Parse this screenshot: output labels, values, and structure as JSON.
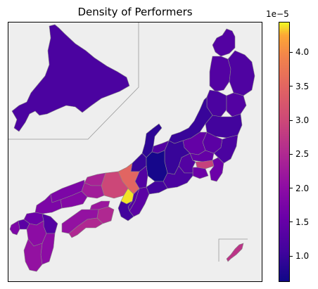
{
  "title": "Density of Performers",
  "colorbar": {
    "colormap": "plasma",
    "multiplier_label": "1e−5",
    "range": [
      0.62,
      4.45
    ],
    "ticks": [
      {
        "value": 1.0,
        "label": "1.0"
      },
      {
        "value": 1.5,
        "label": "1.5"
      },
      {
        "value": 2.0,
        "label": "2.0"
      },
      {
        "value": 2.5,
        "label": "2.5"
      },
      {
        "value": 3.0,
        "label": "3.0"
      },
      {
        "value": 3.5,
        "label": "3.5"
      },
      {
        "value": 4.0,
        "label": "4.0"
      }
    ]
  },
  "background_color": "#eeeeee",
  "border_color": "#888888",
  "regions": [
    {
      "name": "hokkaido",
      "value": 1.2
    },
    {
      "name": "aomori",
      "value": 1.3
    },
    {
      "name": "iwate",
      "value": 1.25
    },
    {
      "name": "akita",
      "value": 1.3
    },
    {
      "name": "miyagi",
      "value": 1.3
    },
    {
      "name": "yamagata",
      "value": 1.2
    },
    {
      "name": "fukushima",
      "value": 1.1
    },
    {
      "name": "niigata",
      "value": 1.0
    },
    {
      "name": "tochigi",
      "value": 1.4
    },
    {
      "name": "ibaraki",
      "value": 1.2
    },
    {
      "name": "gunma",
      "value": 1.5
    },
    {
      "name": "saitama",
      "value": 1.5
    },
    {
      "name": "chiba",
      "value": 1.6
    },
    {
      "name": "tokyo",
      "value": 2.9
    },
    {
      "name": "kanagawa",
      "value": 1.6
    },
    {
      "name": "yamanashi",
      "value": 1.3
    },
    {
      "name": "nagano",
      "value": 1.0
    },
    {
      "name": "shizuoka",
      "value": 1.2
    },
    {
      "name": "toyama",
      "value": 1.3
    },
    {
      "name": "ishikawa",
      "value": 0.9
    },
    {
      "name": "fukui",
      "value": 1.0
    },
    {
      "name": "gifu",
      "value": 0.7
    },
    {
      "name": "aichi",
      "value": 1.1
    },
    {
      "name": "mie",
      "value": 1.4
    },
    {
      "name": "shiga",
      "value": 1.3
    },
    {
      "name": "kyoto",
      "value": 3.5
    },
    {
      "name": "osaka",
      "value": 4.4
    },
    {
      "name": "hyogo",
      "value": 3.0
    },
    {
      "name": "nara",
      "value": 1.3
    },
    {
      "name": "wakayama",
      "value": 1.1
    },
    {
      "name": "tottori",
      "value": 2.4
    },
    {
      "name": "shimane",
      "value": 1.8
    },
    {
      "name": "okayama",
      "value": 2.3
    },
    {
      "name": "hiroshima",
      "value": 1.9
    },
    {
      "name": "yamaguchi",
      "value": 1.8
    },
    {
      "name": "kagawa",
      "value": 2.2
    },
    {
      "name": "tokushima",
      "value": 2.5
    },
    {
      "name": "ehime",
      "value": 2.1
    },
    {
      "name": "kochi",
      "value": 2.5
    },
    {
      "name": "fukuoka",
      "value": 1.6
    },
    {
      "name": "saga",
      "value": 1.4
    },
    {
      "name": "nagasaki",
      "value": 1.8
    },
    {
      "name": "kumamoto",
      "value": 2.0
    },
    {
      "name": "oita",
      "value": 1.3
    },
    {
      "name": "miyazaki",
      "value": 2.0
    },
    {
      "name": "kagoshima",
      "value": 2.1
    },
    {
      "name": "okinawa",
      "value": 2.7
    }
  ]
}
